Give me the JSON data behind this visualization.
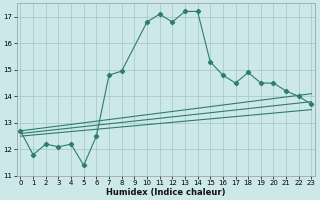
{
  "xlabel": "Humidex (Indice chaleur)",
  "ylabel": "",
  "bg_color": "#cce8e8",
  "grid_color": "#aacccc",
  "line_color": "#2d7d6e",
  "x_main": [
    0,
    1,
    2,
    3,
    4,
    5,
    6,
    7,
    8,
    10,
    11,
    12,
    13,
    14,
    15,
    16,
    17,
    18,
    19,
    20,
    21,
    22,
    23
  ],
  "y_main": [
    12.7,
    11.8,
    12.2,
    12.1,
    12.2,
    11.4,
    12.5,
    14.8,
    14.95,
    16.8,
    17.1,
    16.8,
    17.2,
    17.2,
    15.3,
    14.8,
    14.5,
    14.9,
    14.5,
    14.5,
    14.2,
    14.0,
    13.7
  ],
  "line1_x": [
    0,
    23
  ],
  "line1_y": [
    12.5,
    13.5
  ],
  "line2_x": [
    0,
    23
  ],
  "line2_y": [
    12.6,
    13.8
  ],
  "line3_x": [
    0,
    23
  ],
  "line3_y": [
    12.7,
    14.1
  ],
  "xlim": [
    -0.3,
    23.3
  ],
  "ylim": [
    11.0,
    17.5
  ],
  "yticks": [
    11,
    12,
    13,
    14,
    15,
    16,
    17
  ],
  "xticks": [
    0,
    1,
    2,
    3,
    4,
    5,
    6,
    7,
    8,
    9,
    10,
    11,
    12,
    13,
    14,
    15,
    16,
    17,
    18,
    19,
    20,
    21,
    22,
    23
  ],
  "xlabel_fontsize": 6,
  "tick_fontsize": 5,
  "marker_size": 2.2,
  "line_width": 0.8
}
